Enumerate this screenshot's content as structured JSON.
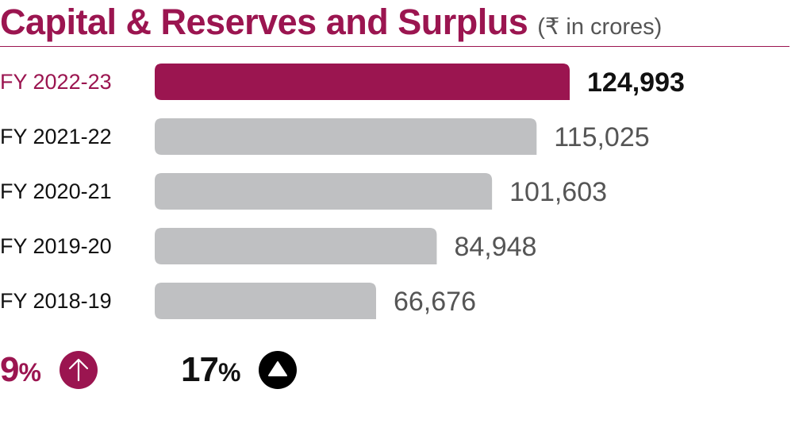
{
  "chart_data": {
    "type": "bar",
    "orientation": "horizontal",
    "title": "Capital & Reserves and Surplus",
    "unit_note": "(₹ in crores)",
    "categories": [
      "FY 2022-23",
      "FY 2021-22",
      "FY 2020-21",
      "FY 2019-20",
      "FY 2018-19"
    ],
    "values": [
      124993,
      115025,
      101603,
      84948,
      66676
    ],
    "value_labels": [
      "124,993",
      "115,025",
      "101,603",
      "84,948",
      "66,676"
    ],
    "highlight_index": 0,
    "grid": false
  },
  "colors": {
    "accent": "#9b1550",
    "bar": "#bfc0c2",
    "label_text": "#111111",
    "value_text": "#555555"
  },
  "stats": [
    {
      "value": "9",
      "suffix": "%",
      "icon": "arrow-up-circle-icon"
    },
    {
      "value": "17",
      "suffix": "%",
      "icon": "triangle-up-circle-icon"
    }
  ]
}
